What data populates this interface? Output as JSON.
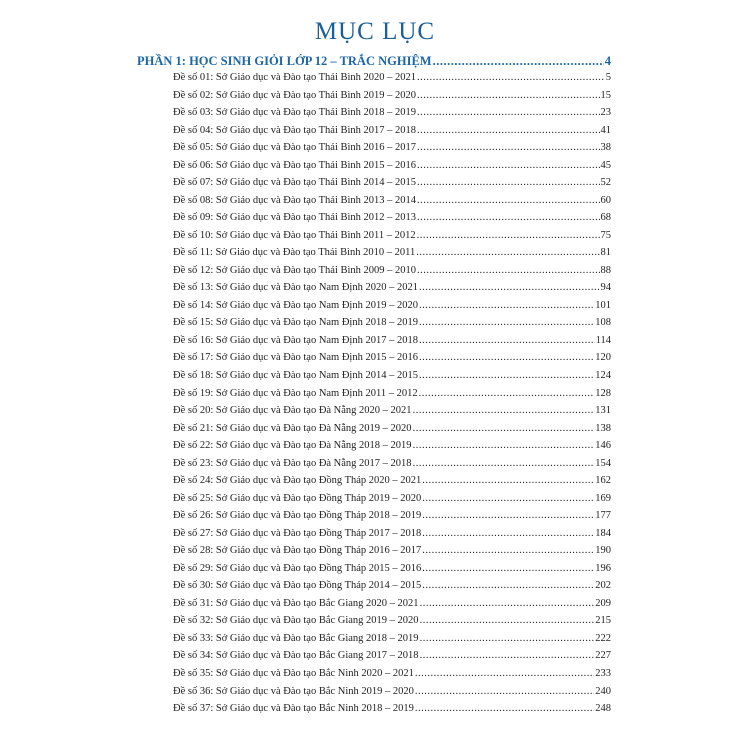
{
  "title": "MỤC LỤC",
  "part": {
    "label": "PHẦN 1: HỌC SINH GIỎI LỚP 12 – TRẮC NGHIỆM",
    "page": "4"
  },
  "entries": [
    {
      "label": "Đề số 01: Sở Giáo dục và Đào tạo Thái Bình 2020 – 2021",
      "page": "5"
    },
    {
      "label": "Đề số 02: Sở Giáo dục và Đào tạo Thái Bình 2019 – 2020",
      "page": "15"
    },
    {
      "label": "Đề số 03: Sở Giáo dục và Đào tạo Thái Bình 2018 – 2019",
      "page": "23"
    },
    {
      "label": "Đề số 04: Sở Giáo dục và Đào tạo Thái Bình 2017 – 2018",
      "page": "41"
    },
    {
      "label": "Đề số 05: Sở Giáo dục và Đào tạo Thái Bình 2016 – 2017",
      "page": "38"
    },
    {
      "label": "Đề số 06: Sở Giáo dục và Đào tạo Thái Bình 2015 – 2016",
      "page": "45"
    },
    {
      "label": "Đề số 07: Sở Giáo dục và Đào tạo Thái Bình 2014 – 2015",
      "page": "52"
    },
    {
      "label": "Đề số 08: Sở Giáo dục và Đào tạo Thái Bình 2013 – 2014",
      "page": "60"
    },
    {
      "label": "Đề số 09: Sở Giáo dục và Đào tạo Thái Bình 2012 – 2013",
      "page": "68"
    },
    {
      "label": "Đề số 10: Sở Giáo dục và Đào tạo Thái Bình 2011 – 2012",
      "page": "75"
    },
    {
      "label": "Đề số 11: Sở Giáo dục và Đào tạo Thái Bình 2010 – 2011",
      "page": "81"
    },
    {
      "label": "Đề số 12: Sở Giáo dục và Đào tạo Thái Bình 2009 – 2010",
      "page": "88"
    },
    {
      "label": "Đề số 13: Sở Giáo dục và Đào tạo Nam Định 2020 – 2021",
      "page": "94"
    },
    {
      "label": "Đề số 14: Sở Giáo dục và Đào tạo Nam Định 2019 – 2020",
      "page": "101"
    },
    {
      "label": "Đề số 15: Sở Giáo dục và Đào tạo Nam Định 2018 – 2019",
      "page": "108"
    },
    {
      "label": "Đề số 16: Sở Giáo dục và Đào tạo Nam Định 2017 – 2018",
      "page": "114"
    },
    {
      "label": "Đề số 17: Sở Giáo dục và Đào tạo Nam Định 2015 – 2016",
      "page": "120"
    },
    {
      "label": "Đề số 18: Sở Giáo dục và Đào tạo Nam Định 2014 – 2015",
      "page": "124"
    },
    {
      "label": "Đề số 19: Sở Giáo dục và Đào tạo Nam Định 2011 – 2012",
      "page": "128"
    },
    {
      "label": "Đề số 20: Sở Giáo dục và Đào tạo Đà Nẵng 2020 – 2021",
      "page": "131"
    },
    {
      "label": "Đề số 21: Sở Giáo dục và Đào tạo Đà Nẵng 2019 – 2020",
      "page": "138"
    },
    {
      "label": "Đề số 22: Sở Giáo dục và Đào tạo Đà Nẵng 2018 – 2019",
      "page": "146"
    },
    {
      "label": "Đề số 23: Sở Giáo dục và Đào tạo Đà Nẵng 2017 – 2018",
      "page": "154"
    },
    {
      "label": "Đề số 24: Sở Giáo dục và Đào tạo Đồng Tháp 2020 – 2021",
      "page": "162"
    },
    {
      "label": "Đề số 25: Sở Giáo dục và Đào tạo Đồng Tháp 2019 – 2020",
      "page": "169"
    },
    {
      "label": "Đề số 26: Sở Giáo dục và Đào tạo Đồng Tháp 2018 – 2019",
      "page": "177"
    },
    {
      "label": "Đề số 27: Sở Giáo dục và Đào tạo Đồng Tháp 2017 – 2018",
      "page": "184"
    },
    {
      "label": "Đề số 28: Sở Giáo dục và Đào tạo Đồng Tháp 2016 – 2017",
      "page": "190"
    },
    {
      "label": "Đề số 29: Sở Giáo dục và Đào tạo Đồng Tháp 2015 – 2016",
      "page": "196"
    },
    {
      "label": "Đề số 30: Sở Giáo dục và Đào tạo Đồng Tháp 2014 – 2015",
      "page": "202"
    },
    {
      "label": "Đề số 31: Sở Giáo dục và Đào tạo Bắc Giang 2020 – 2021",
      "page": "209"
    },
    {
      "label": "Đề số 32: Sở Giáo dục và Đào tạo Bắc Giang 2019 – 2020",
      "page": "215"
    },
    {
      "label": "Đề số 33: Sở Giáo dục và Đào tạo Bắc Giang 2018 – 2019",
      "page": "222"
    },
    {
      "label": "Đề số 34: Sở Giáo dục và Đào tạo Bắc Giang 2017 – 2018",
      "page": "227"
    },
    {
      "label": "Đề số 35: Sở Giáo dục và Đào tạo Bắc Ninh 2020 – 2021",
      "page": "233"
    },
    {
      "label": "Đề số 36: Sở Giáo dục và Đào tạo Bắc Ninh 2019 – 2020",
      "page": "240"
    },
    {
      "label": "Đề số 37: Sở Giáo dục và Đào tạo Bắc Ninh 2018 – 2019",
      "page": "248"
    }
  ]
}
